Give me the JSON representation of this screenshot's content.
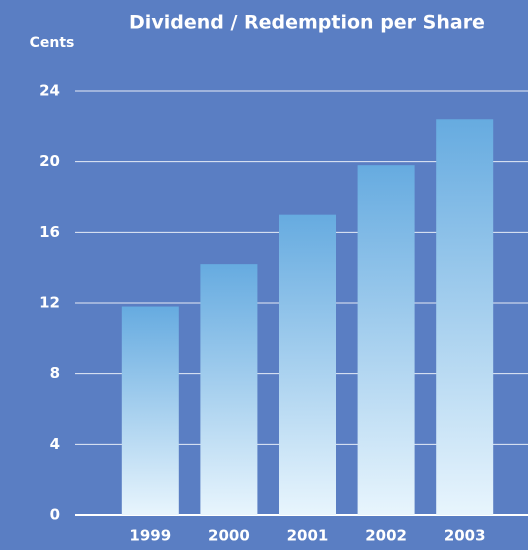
{
  "chart_data": {
    "type": "bar",
    "title": "Dividend / Redemption per Share",
    "y_label": "Cents",
    "categories": [
      "1999",
      "2000",
      "2001",
      "2002",
      "2003"
    ],
    "values": [
      11.8,
      14.2,
      17.0,
      19.8,
      22.4
    ],
    "color": "#66abe0",
    "ylim": [
      0,
      24
    ],
    "yticks": [
      0,
      4,
      8,
      12,
      16,
      20,
      24
    ],
    "grid": true
  }
}
